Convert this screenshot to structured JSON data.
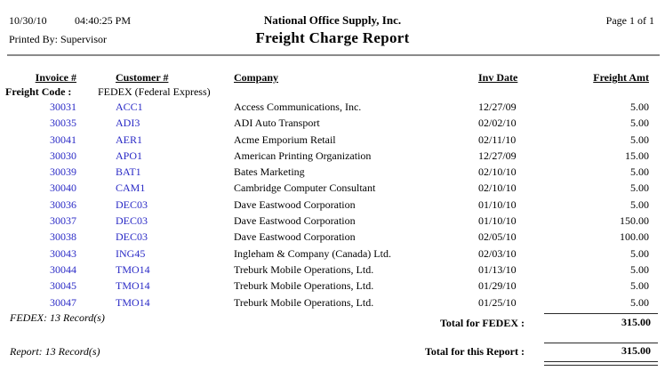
{
  "colors": {
    "link_blue": "#2a2ac6",
    "rule_gray": "#8a8a8a",
    "total_line": "#2b2b2b"
  },
  "header": {
    "date": "10/30/10",
    "time": "04:40:25 PM",
    "printed_by": "Printed By: Supervisor",
    "company": "National Office Supply, Inc.",
    "title": "Freight Charge Report",
    "page_info": "Page 1 of 1"
  },
  "table": {
    "columns": [
      "Invoice #",
      "Customer #",
      "Company",
      "Inv Date",
      "Freight Amt"
    ],
    "group_label": "Freight Code :",
    "group_value": "FEDEX (Federal Express)",
    "rows": [
      {
        "invoice": "30031",
        "customer": "ACC1",
        "company": "Access Communications, Inc.",
        "inv_date": "12/27/09",
        "freight_amt": "5.00"
      },
      {
        "invoice": "30035",
        "customer": "ADI3",
        "company": "ADI Auto Transport",
        "inv_date": "02/02/10",
        "freight_amt": "5.00"
      },
      {
        "invoice": "30041",
        "customer": "AER1",
        "company": "Acme Emporium Retail",
        "inv_date": "02/11/10",
        "freight_amt": "5.00"
      },
      {
        "invoice": "30030",
        "customer": "APO1",
        "company": "American Printing Organization",
        "inv_date": "12/27/09",
        "freight_amt": "15.00"
      },
      {
        "invoice": "30039",
        "customer": "BAT1",
        "company": "Bates Marketing",
        "inv_date": "02/10/10",
        "freight_amt": "5.00"
      },
      {
        "invoice": "30040",
        "customer": "CAM1",
        "company": "Cambridge Computer Consultant",
        "inv_date": "02/10/10",
        "freight_amt": "5.00"
      },
      {
        "invoice": "30036",
        "customer": "DEC03",
        "company": "Dave Eastwood Corporation",
        "inv_date": "01/10/10",
        "freight_amt": "5.00"
      },
      {
        "invoice": "30037",
        "customer": "DEC03",
        "company": "Dave Eastwood Corporation",
        "inv_date": "01/10/10",
        "freight_amt": "150.00"
      },
      {
        "invoice": "30038",
        "customer": "DEC03",
        "company": "Dave Eastwood Corporation",
        "inv_date": "02/05/10",
        "freight_amt": "100.00"
      },
      {
        "invoice": "30043",
        "customer": "ING45",
        "company": "Ingleham & Company (Canada) Ltd.",
        "inv_date": "02/03/10",
        "freight_amt": "5.00"
      },
      {
        "invoice": "30044",
        "customer": "TMO14",
        "company": "Treburk Mobile Operations, Ltd.",
        "inv_date": "01/13/10",
        "freight_amt": "5.00"
      },
      {
        "invoice": "30045",
        "customer": "TMO14",
        "company": "Treburk Mobile Operations, Ltd.",
        "inv_date": "01/29/10",
        "freight_amt": "5.00"
      },
      {
        "invoice": "30047",
        "customer": "TMO14",
        "company": "Treburk Mobile Operations, Ltd.",
        "inv_date": "01/25/10",
        "freight_amt": "5.00"
      }
    ]
  },
  "group_footer": {
    "record_count": "FEDEX: 13 Record(s)",
    "total_label": "Total for FEDEX :",
    "total_value": "315.00"
  },
  "report_footer": {
    "record_count": "Report: 13 Record(s)",
    "total_label": "Total for this Report :",
    "total_value": "315.00"
  }
}
